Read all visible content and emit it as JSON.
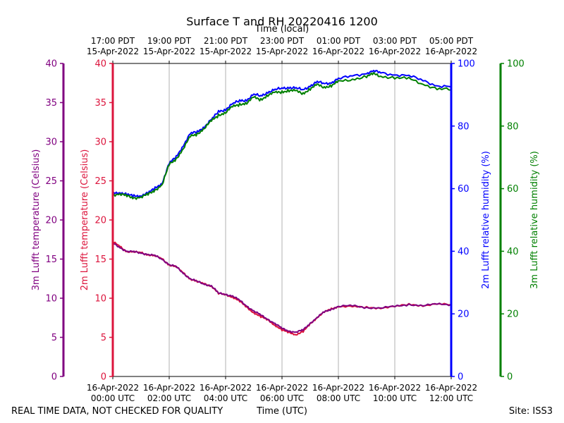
{
  "title": "Surface T and RH 20220416 1200",
  "footer": {
    "quality_note": "REAL TIME DATA, NOT CHECKED FOR QUALITY",
    "site": "Site: ISS3"
  },
  "chart_data": {
    "type": "line",
    "title": "Surface T and RH 20220416 1200",
    "x_axis_bottom": {
      "label": "Time (UTC)",
      "range_utc_hours": [
        0,
        12
      ],
      "ticks": [
        {
          "hour": 0,
          "line1": "16-Apr-2022",
          "line2": "00:00 UTC"
        },
        {
          "hour": 2,
          "line1": "16-Apr-2022",
          "line2": "02:00 UTC"
        },
        {
          "hour": 4,
          "line1": "16-Apr-2022",
          "line2": "04:00 UTC"
        },
        {
          "hour": 6,
          "line1": "16-Apr-2022",
          "line2": "06:00 UTC"
        },
        {
          "hour": 8,
          "line1": "16-Apr-2022",
          "line2": "08:00 UTC"
        },
        {
          "hour": 10,
          "line1": "16-Apr-2022",
          "line2": "10:00 UTC"
        },
        {
          "hour": 12,
          "line1": "16-Apr-2022",
          "line2": "12:00 UTC"
        }
      ]
    },
    "x_axis_top": {
      "label": "Time (local)",
      "ticks": [
        {
          "hour": 0,
          "line1": "17:00 PDT",
          "line2": "15-Apr-2022"
        },
        {
          "hour": 2,
          "line1": "19:00 PDT",
          "line2": "15-Apr-2022"
        },
        {
          "hour": 4,
          "line1": "21:00 PDT",
          "line2": "15-Apr-2022"
        },
        {
          "hour": 6,
          "line1": "23:00 PDT",
          "line2": "15-Apr-2022"
        },
        {
          "hour": 8,
          "line1": "01:00 PDT",
          "line2": "16-Apr-2022"
        },
        {
          "hour": 10,
          "line1": "03:00 PDT",
          "line2": "16-Apr-2022"
        },
        {
          "hour": 12,
          "line1": "05:00 PDT",
          "line2": "16-Apr-2022"
        }
      ]
    },
    "y_axes": [
      {
        "id": "t3m",
        "label": "3m Lufft temperature (Celsius)",
        "color": "#800080",
        "range": [
          0,
          40
        ],
        "ticks": [
          0,
          5,
          10,
          15,
          20,
          25,
          30,
          35,
          40
        ]
      },
      {
        "id": "t2m",
        "label": "2m Lufft temperature (Celsius)",
        "color": "#dc143c",
        "range": [
          0,
          40
        ],
        "ticks": [
          0,
          5,
          10,
          15,
          20,
          25,
          30,
          35,
          40
        ]
      },
      {
        "id": "rh2m",
        "label": "2m Lufft relative humidity (%)",
        "color": "#0000ff",
        "range": [
          0,
          100
        ],
        "ticks": [
          0,
          20,
          40,
          60,
          80,
          100
        ]
      },
      {
        "id": "rh3m",
        "label": "3m Lufft relative humidity (%)",
        "color": "#008000",
        "range": [
          0,
          100
        ],
        "ticks": [
          0,
          20,
          40,
          60,
          80,
          100
        ]
      }
    ],
    "grid": "vertical",
    "series": [
      {
        "axis": "t2m",
        "color": "#dc143c",
        "x": [
          0,
          0.25,
          0.5,
          0.75,
          1.0,
          1.25,
          1.5,
          1.75,
          2.0,
          2.25,
          2.5,
          2.75,
          3.0,
          3.25,
          3.5,
          3.75,
          4.0,
          4.25,
          4.5,
          4.75,
          5.0,
          5.25,
          5.5,
          5.75,
          6.0,
          6.25,
          6.5,
          6.75,
          7.0,
          7.25,
          7.5,
          7.75,
          8.0,
          8.5,
          9.0,
          9.5,
          10.0,
          10.5,
          11.0,
          11.5,
          12.0
        ],
        "y": [
          17.2,
          16.6,
          16.0,
          15.9,
          15.8,
          15.6,
          15.4,
          15.0,
          14.3,
          14.0,
          13.2,
          12.5,
          12.1,
          11.8,
          11.6,
          10.6,
          10.4,
          10.2,
          9.6,
          8.8,
          8.2,
          7.6,
          7.2,
          6.6,
          5.9,
          5.6,
          5.4,
          5.7,
          6.7,
          7.6,
          8.2,
          8.6,
          9.0,
          8.9,
          8.8,
          8.8,
          8.9,
          9.2,
          9.1,
          9.2,
          9.2
        ]
      },
      {
        "axis": "t3m",
        "color": "#800080",
        "x": [
          0,
          0.25,
          0.5,
          0.75,
          1.0,
          1.25,
          1.5,
          1.75,
          2.0,
          2.25,
          2.5,
          2.75,
          3.0,
          3.25,
          3.5,
          3.75,
          4.0,
          4.25,
          4.5,
          4.75,
          5.0,
          5.25,
          5.5,
          5.75,
          6.0,
          6.25,
          6.5,
          6.75,
          7.0,
          7.25,
          7.5,
          7.75,
          8.0,
          8.5,
          9.0,
          9.5,
          10.0,
          10.5,
          11.0,
          11.5,
          12.0
        ],
        "y": [
          17.0,
          16.5,
          16.0,
          15.9,
          15.8,
          15.6,
          15.4,
          15.0,
          14.3,
          14.0,
          13.2,
          12.5,
          12.1,
          11.8,
          11.6,
          10.6,
          10.5,
          10.3,
          9.7,
          9.0,
          8.4,
          7.8,
          7.3,
          6.8,
          6.1,
          5.8,
          5.7,
          5.9,
          6.8,
          7.6,
          8.2,
          8.6,
          9.0,
          9.0,
          8.8,
          8.8,
          8.9,
          9.2,
          9.1,
          9.2,
          9.2
        ]
      },
      {
        "axis": "rh2m",
        "color": "#0000ff",
        "x": [
          0,
          0.25,
          0.5,
          0.75,
          1.0,
          1.25,
          1.5,
          1.75,
          2.0,
          2.25,
          2.5,
          2.75,
          3.0,
          3.25,
          3.5,
          3.75,
          4.0,
          4.25,
          4.5,
          4.75,
          5.0,
          5.25,
          5.5,
          5.75,
          6.0,
          6.25,
          6.5,
          6.75,
          7.0,
          7.25,
          7.5,
          7.75,
          8.0,
          8.5,
          9.0,
          9.25,
          9.5,
          10.0,
          10.5,
          11.0,
          11.5,
          12.0
        ],
        "y": [
          58.5,
          59.0,
          58.0,
          57.5,
          58.0,
          58.5,
          60.0,
          62.0,
          68.0,
          70.0,
          74.0,
          77.5,
          78.0,
          80.0,
          82.0,
          84.5,
          85.5,
          87.0,
          88.0,
          88.5,
          90.0,
          89.5,
          91.0,
          91.5,
          92.0,
          92.5,
          92.0,
          91.5,
          93.0,
          94.0,
          93.5,
          94.0,
          95.0,
          96.0,
          97.0,
          97.5,
          97.0,
          96.5,
          96.0,
          94.5,
          93.0,
          92.5
        ]
      },
      {
        "axis": "rh3m",
        "color": "#008000",
        "x": [
          0,
          0.25,
          0.5,
          0.75,
          1.0,
          1.25,
          1.5,
          1.75,
          2.0,
          2.25,
          2.5,
          2.75,
          3.0,
          3.25,
          3.5,
          3.75,
          4.0,
          4.25,
          4.5,
          4.75,
          5.0,
          5.25,
          5.5,
          5.75,
          6.0,
          6.25,
          6.5,
          6.75,
          7.0,
          7.25,
          7.5,
          7.75,
          8.0,
          8.5,
          9.0,
          9.25,
          9.5,
          10.0,
          10.5,
          11.0,
          11.5,
          12.0
        ],
        "y": [
          58.0,
          58.5,
          57.5,
          57.0,
          57.5,
          58.0,
          59.5,
          61.5,
          67.5,
          69.5,
          73.0,
          76.5,
          77.5,
          79.5,
          81.5,
          83.5,
          84.5,
          86.0,
          87.0,
          87.5,
          89.0,
          88.5,
          90.0,
          90.5,
          91.0,
          91.5,
          91.0,
          90.5,
          92.0,
          93.0,
          92.5,
          93.0,
          94.0,
          95.0,
          96.0,
          96.5,
          96.0,
          95.5,
          95.0,
          93.5,
          92.0,
          91.5
        ]
      }
    ]
  }
}
